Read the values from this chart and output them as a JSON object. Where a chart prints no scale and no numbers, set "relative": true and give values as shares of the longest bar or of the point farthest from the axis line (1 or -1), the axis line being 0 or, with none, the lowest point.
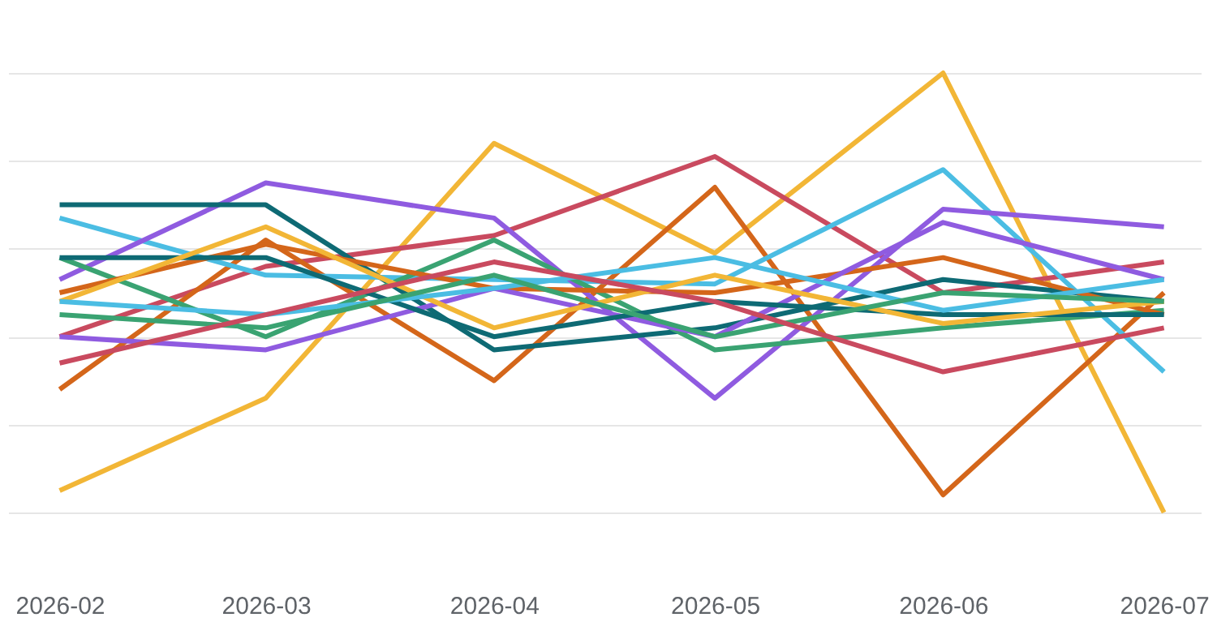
{
  "chart_data": {
    "type": "line",
    "relative": true,
    "x": [
      "2026-02",
      "2026-03",
      "2026-04",
      "2026-05",
      "2026-06",
      "2026-07"
    ],
    "xlim": [
      "2026-01-25",
      "2026-07-06"
    ],
    "xticks": [
      "2026-02",
      "2026-03",
      "2026-04",
      "2026-05",
      "2026-06",
      "2026-07"
    ],
    "grid": "y",
    "legend": false,
    "tick_labels": "x",
    "line_style": "solid",
    "marker": "none",
    "series": [
      {
        "color": "#f2b636",
        "values": [
          0.05,
          0.26,
          0.84,
          0.59,
          1.0,
          0.0
        ]
      },
      {
        "color": "#c94a5f",
        "values": [
          0.4,
          0.56,
          0.63,
          0.81,
          0.5,
          0.57
        ]
      },
      {
        "color": "#d4661a",
        "values": [
          0.28,
          0.62,
          0.3,
          0.74,
          0.04,
          0.5
        ]
      },
      {
        "color": "#4bbde3",
        "values": [
          0.67,
          0.54,
          0.53,
          0.52,
          0.78,
          0.32
        ]
      },
      {
        "color": "#8f5be0",
        "values": [
          0.53,
          0.75,
          0.67,
          0.26,
          0.69,
          0.65
        ]
      },
      {
        "color": "#0e6a74",
        "values": [
          0.7,
          0.7,
          0.37,
          0.42,
          0.53,
          0.48
        ]
      },
      {
        "color": "#3aa372",
        "values": [
          0.58,
          0.4,
          0.62,
          0.37,
          0.42,
          0.46
        ]
      },
      {
        "color": "#d4661a",
        "values": [
          0.5,
          0.61,
          0.51,
          0.5,
          0.58,
          0.45
        ]
      },
      {
        "color": "#8f5be0",
        "values": [
          0.4,
          0.37,
          0.51,
          0.4,
          0.66,
          0.53
        ]
      },
      {
        "color": "#0e6a74",
        "values": [
          0.58,
          0.58,
          0.4,
          0.48,
          0.45,
          0.45
        ]
      },
      {
        "color": "#f2b636",
        "values": [
          0.48,
          0.65,
          0.42,
          0.54,
          0.43,
          0.48
        ]
      },
      {
        "color": "#4bbde3",
        "values": [
          0.48,
          0.45,
          0.51,
          0.58,
          0.46,
          0.53
        ]
      },
      {
        "color": "#3aa372",
        "values": [
          0.45,
          0.42,
          0.54,
          0.4,
          0.5,
          0.48
        ]
      },
      {
        "color": "#c94a5f",
        "values": [
          0.34,
          0.45,
          0.57,
          0.48,
          0.32,
          0.42
        ]
      }
    ]
  }
}
